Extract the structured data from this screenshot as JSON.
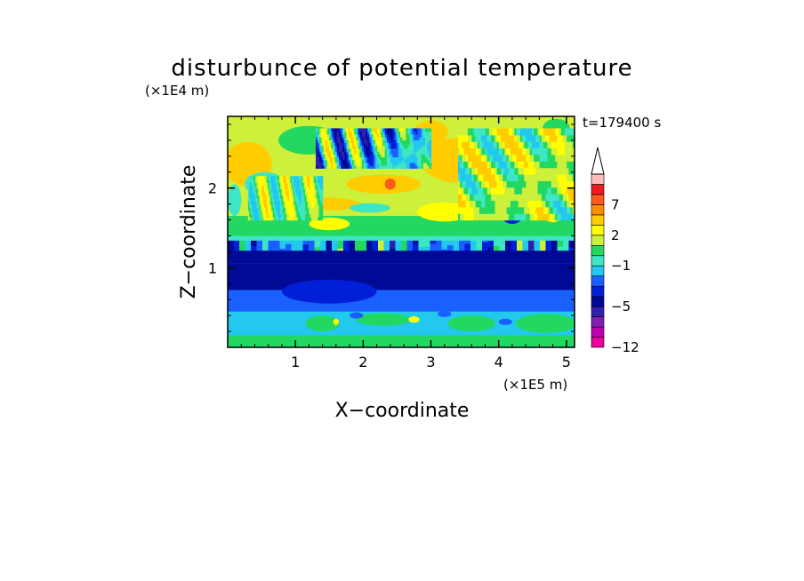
{
  "chart_data": {
    "type": "heatmap",
    "title": "disturbunce of potential temperature",
    "time_label": "t=179400 s",
    "xlabel": "X−coordinate",
    "ylabel": "Z−coordinate",
    "x_unit": "(×1E5 m)",
    "y_unit": "(×1E4 m)",
    "xlim": [
      0,
      5.12
    ],
    "ylim": [
      0,
      2.9
    ],
    "x_ticks": [
      1,
      2,
      3,
      4,
      5
    ],
    "x_tick_labels": [
      "1",
      "2",
      "3",
      "4",
      "5"
    ],
    "y_ticks": [
      1,
      2
    ],
    "y_tick_labels": [
      "1",
      "2"
    ],
    "grid": false,
    "colorbar": {
      "placement": "right",
      "levels": [
        -12,
        -11,
        -9,
        -7,
        -5,
        -4,
        -3,
        -2,
        -1,
        0,
        1,
        2,
        3,
        5,
        7,
        9,
        11
      ],
      "colors": [
        "#ee00a0",
        "#c000b0",
        "#8020b0",
        "#3020b0",
        "#000a96",
        "#0020d8",
        "#1a60ff",
        "#22c8ee",
        "#3ee6c4",
        "#22d860",
        "#cdf03a",
        "#ffff00",
        "#ffcc00",
        "#ff8c00",
        "#ff5a1a",
        "#ee1c1c",
        "#ffbcbc"
      ],
      "extend_max_color": "#ffffff",
      "labels": [
        {
          "value": -12,
          "text": "−12"
        },
        {
          "value": -5,
          "text": "−5"
        },
        {
          "value": -1,
          "text": "−1"
        },
        {
          "value": 2,
          "text": "2"
        },
        {
          "value": 7,
          "text": "7"
        }
      ]
    },
    "background_color": "#22c8ee",
    "regions": [
      {
        "kind": "band",
        "z0": 0.0,
        "z1": 0.15,
        "value": 0.5
      },
      {
        "kind": "band",
        "z0": 0.45,
        "z1": 0.72,
        "value": -2.5
      },
      {
        "kind": "band",
        "z0": 0.72,
        "z1": 1.05,
        "value": -4.5
      },
      {
        "kind": "band",
        "z0": 1.05,
        "z1": 1.28,
        "value": -4.5
      },
      {
        "kind": "band",
        "z0": 1.28,
        "z1": 1.4,
        "value": -0.5
      },
      {
        "kind": "band",
        "z0": 1.4,
        "z1": 1.65,
        "value": 0.8
      },
      {
        "kind": "band",
        "z0": 1.65,
        "z1": 2.9,
        "value": 1.5
      },
      {
        "kind": "blob",
        "x": 0.3,
        "z": 2.3,
        "rx": 0.35,
        "rz": 0.28,
        "value": 3.5
      },
      {
        "kind": "blob",
        "x": 0.55,
        "z": 2.05,
        "rx": 0.3,
        "rz": 0.15,
        "value": -1.0
      },
      {
        "kind": "blob",
        "x": 0.1,
        "z": 1.85,
        "rx": 0.1,
        "rz": 0.2,
        "value": -0.5
      },
      {
        "kind": "blob",
        "x": 1.2,
        "z": 2.6,
        "rx": 0.45,
        "rz": 0.18,
        "value": 0.5
      },
      {
        "kind": "blob",
        "x": 1.45,
        "z": 1.8,
        "rx": 0.5,
        "rz": 0.08,
        "value": 3.5
      },
      {
        "kind": "blob",
        "x": 2.3,
        "z": 2.05,
        "rx": 0.55,
        "rz": 0.12,
        "value": 3.5
      },
      {
        "kind": "blob",
        "x": 2.4,
        "z": 2.05,
        "rx": 0.08,
        "rz": 0.07,
        "value": 8.0
      },
      {
        "kind": "blob",
        "x": 1.5,
        "z": 1.55,
        "rx": 0.3,
        "rz": 0.08,
        "value": 2.5
      },
      {
        "kind": "blob",
        "x": 2.2,
        "z": 2.5,
        "rx": 0.5,
        "rz": 0.25,
        "value": -2.0
      },
      {
        "kind": "blob",
        "x": 2.1,
        "z": 1.75,
        "rx": 0.3,
        "rz": 0.06,
        "value": -0.5
      },
      {
        "kind": "blob",
        "x": 3.4,
        "z": 2.35,
        "rx": 0.55,
        "rz": 0.28,
        "value": 4.0
      },
      {
        "kind": "blob",
        "x": 3.75,
        "z": 2.45,
        "rx": 0.12,
        "rz": 0.09,
        "value": 8.0
      },
      {
        "kind": "blob",
        "x": 4.3,
        "z": 2.15,
        "rx": 0.3,
        "rz": 0.3,
        "value": 3.0
      },
      {
        "kind": "blob",
        "x": 4.55,
        "z": 2.55,
        "rx": 0.14,
        "rz": 0.12,
        "value": -2.5
      },
      {
        "kind": "blob",
        "x": 3.9,
        "z": 2.0,
        "rx": 0.14,
        "rz": 0.1,
        "value": -1.0
      },
      {
        "kind": "blob",
        "x": 4.2,
        "z": 1.65,
        "rx": 0.15,
        "rz": 0.1,
        "value": -4.0
      },
      {
        "kind": "blob",
        "x": 4.8,
        "z": 1.85,
        "rx": 0.22,
        "rz": 0.28,
        "value": 2.5
      },
      {
        "kind": "blob",
        "x": 3.2,
        "z": 1.7,
        "rx": 0.4,
        "rz": 0.12,
        "value": 2.5
      },
      {
        "kind": "blob",
        "x": 3.0,
        "z": 2.7,
        "rx": 0.25,
        "rz": 0.15,
        "value": 3.5
      },
      {
        "kind": "blob",
        "x": 4.85,
        "z": 2.75,
        "rx": 0.2,
        "rz": 0.12,
        "value": 0.5
      },
      {
        "kind": "blob",
        "x": 1.5,
        "z": 0.7,
        "rx": 0.7,
        "rz": 0.15,
        "value": -3.5
      },
      {
        "kind": "blob",
        "x": 1.4,
        "z": 0.3,
        "rx": 0.25,
        "rz": 0.1,
        "value": 0.5
      },
      {
        "kind": "blob",
        "x": 2.3,
        "z": 0.35,
        "rx": 0.4,
        "rz": 0.08,
        "value": 0.5
      },
      {
        "kind": "blob",
        "x": 3.6,
        "z": 0.3,
        "rx": 0.35,
        "rz": 0.1,
        "value": 0.5
      },
      {
        "kind": "blob",
        "x": 4.7,
        "z": 0.3,
        "rx": 0.45,
        "rz": 0.12,
        "value": 0.5
      },
      {
        "kind": "blob",
        "x": 1.9,
        "z": 0.4,
        "rx": 0.1,
        "rz": 0.04,
        "value": -2.5
      },
      {
        "kind": "blob",
        "x": 3.2,
        "z": 0.42,
        "rx": 0.1,
        "rz": 0.04,
        "value": -2.5
      },
      {
        "kind": "blob",
        "x": 4.1,
        "z": 0.32,
        "rx": 0.1,
        "rz": 0.04,
        "value": -2.5
      },
      {
        "kind": "blob",
        "x": 2.75,
        "z": 0.35,
        "rx": 0.08,
        "rz": 0.04,
        "value": 2.5
      },
      {
        "kind": "blob",
        "x": 1.6,
        "z": 0.32,
        "rx": 0.04,
        "rz": 0.04,
        "value": 2.5
      }
    ],
    "wave_trains": [
      {
        "x0": 1.3,
        "x1": 3.0,
        "z0": 2.25,
        "z1": 2.75,
        "k": 16,
        "kz": 5,
        "amplitude": 4.5,
        "offset": -1.0
      },
      {
        "x0": 0.3,
        "x1": 1.4,
        "z0": 1.6,
        "z1": 2.15,
        "k": 18,
        "kz": 4,
        "amplitude": 2.5,
        "offset": 0.8
      },
      {
        "x0": 3.4,
        "x1": 5.12,
        "z0": 1.6,
        "z1": 2.75,
        "k": 9,
        "kz": 8,
        "amplitude": 3.0,
        "offset": 1.2
      },
      {
        "x0": 0.0,
        "x1": 5.12,
        "z0": 1.22,
        "z1": 1.34,
        "k": 20,
        "kz": 0,
        "amplitude": 3.5,
        "offset": -2.0
      }
    ]
  }
}
